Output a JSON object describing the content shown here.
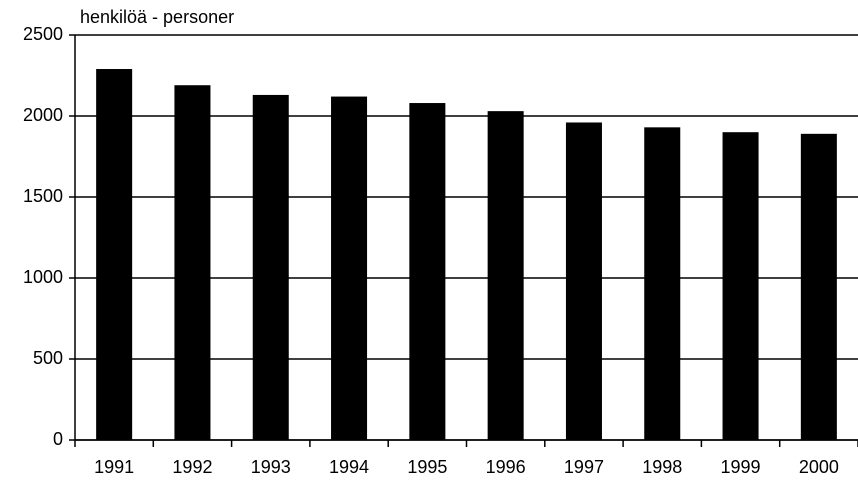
{
  "chart_data": {
    "type": "bar",
    "y_label": "henkilöä - personer",
    "categories": [
      "1991",
      "1992",
      "1993",
      "1994",
      "1995",
      "1996",
      "1997",
      "1998",
      "1999",
      "2000"
    ],
    "values": [
      2290,
      2190,
      2130,
      2120,
      2080,
      2030,
      1960,
      1930,
      1900,
      1890
    ],
    "color": "#000000",
    "ylim": [
      0,
      2500
    ],
    "yticks": [
      0,
      500,
      1000,
      1500,
      2000,
      2500
    ],
    "grid": true
  }
}
